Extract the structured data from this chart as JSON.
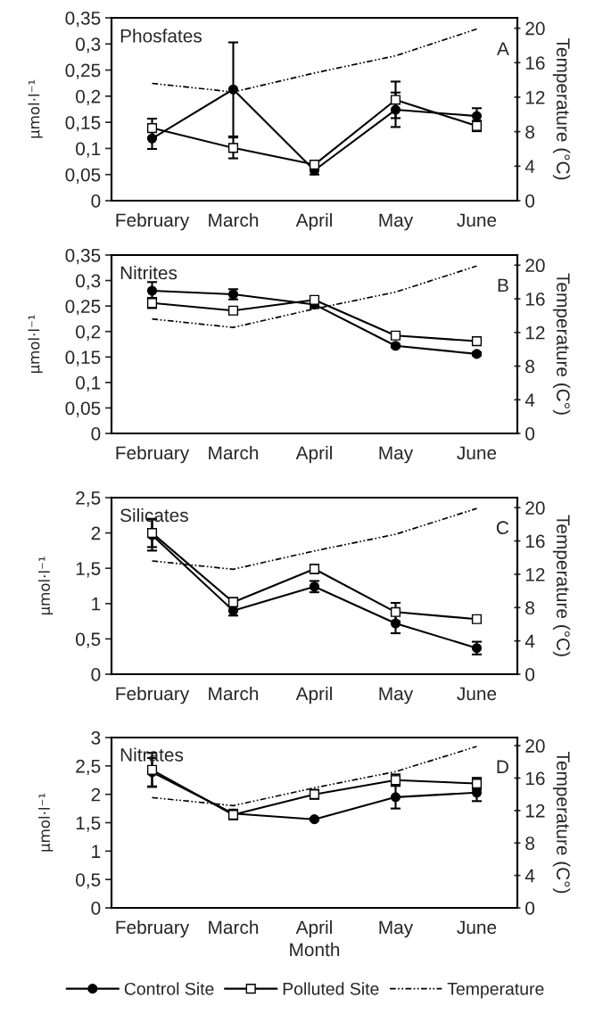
{
  "chart_data": [
    {
      "type": "line",
      "categories": [
        "February",
        "March",
        "April",
        "May",
        "June"
      ],
      "ylabel": "µmol·l⁻¹",
      "y2label": "Temperature (°C)",
      "annotations": [
        "Phosfates",
        "A"
      ],
      "ylim": [
        0,
        0.35
      ],
      "yticks": [
        0,
        {
          "value": 0.05,
          "label": "0,05"
        },
        {
          "value": 0.1,
          "label": "0,1"
        },
        {
          "value": 0.15,
          "label": "0,15"
        },
        {
          "value": 0.2,
          "label": "0,2"
        },
        {
          "value": 0.25,
          "label": "0,25"
        },
        {
          "value": 0.3,
          "label": "0,3"
        },
        {
          "value": 0.35,
          "label": "0,35"
        }
      ],
      "y2lim": [
        0,
        21.2
      ],
      "y2ticks": [
        0,
        4,
        8,
        12,
        16,
        20
      ],
      "grid": false,
      "series": [
        {
          "color": "#000000",
          "marker": "circle",
          "values": [
            0.119,
            0.213,
            0.058,
            0.174,
            0.162
          ],
          "errors": [
            0.02,
            0.09,
            0.008,
            0.033,
            0.015
          ]
        },
        {
          "color": "#000000",
          "marker": "square",
          "values": [
            0.139,
            0.101,
            0.069,
            0.193,
            0.143
          ],
          "errors": [
            0.018,
            0.02,
            0.007,
            0.035,
            0.01
          ]
        },
        {
          "color": "#000000",
          "marker": "none",
          "line_style": "dotted",
          "axis": "y2",
          "values": [
            13.6,
            12.6,
            14.8,
            16.8,
            19.9
          ]
        }
      ]
    },
    {
      "type": "line",
      "categories": [
        "February",
        "March",
        "April",
        "May",
        "June"
      ],
      "ylabel": "µmol·l⁻¹",
      "y2label": "Temperature (C°)",
      "annotations": [
        "Nitrites",
        "B"
      ],
      "ylim": [
        0,
        0.35
      ],
      "yticks": [
        0,
        {
          "value": 0.05,
          "label": "0,05"
        },
        {
          "value": 0.1,
          "label": "0,1"
        },
        {
          "value": 0.15,
          "label": "0,15"
        },
        {
          "value": 0.2,
          "label": "0,2"
        },
        {
          "value": 0.25,
          "label": "0,25"
        },
        {
          "value": 0.3,
          "label": "0,3"
        },
        {
          "value": 0.35,
          "label": "0,35"
        }
      ],
      "y2lim": [
        0,
        21.2
      ],
      "y2ticks": [
        0,
        4,
        8,
        12,
        16,
        20
      ],
      "grid": false,
      "series": [
        {
          "color": "#000000",
          "marker": "circle",
          "values": [
            0.28,
            0.273,
            0.253,
            0.172,
            0.156
          ],
          "errors": [
            0.017,
            0.01,
            0.007,
            0.003,
            0.003
          ]
        },
        {
          "color": "#000000",
          "marker": "square",
          "values": [
            0.256,
            0.241,
            0.262,
            0.192,
            0.181
          ],
          "errors": [
            0.01,
            0.007,
            0.005,
            0.004,
            0.003
          ]
        },
        {
          "color": "#000000",
          "marker": "none",
          "line_style": "dotted",
          "axis": "y2",
          "values": [
            13.6,
            12.6,
            14.8,
            16.8,
            19.9
          ]
        }
      ]
    },
    {
      "type": "line",
      "categories": [
        "February",
        "March",
        "April",
        "May",
        "June"
      ],
      "ylabel": "µmol·l⁻¹",
      "y2label": "Temperature (°C)",
      "annotations": [
        "Silicates",
        "C"
      ],
      "ylim": [
        0,
        2.5
      ],
      "yticks": [
        0,
        {
          "value": 0.5,
          "label": "0,5"
        },
        1,
        {
          "value": 1.5,
          "label": "1,5"
        },
        2,
        {
          "value": 2.5,
          "label": "2,5"
        }
      ],
      "y2lim": [
        0,
        21.2
      ],
      "y2ticks": [
        0,
        4,
        8,
        12,
        16,
        20
      ],
      "grid": false,
      "series": [
        {
          "color": "#000000",
          "marker": "circle",
          "values": [
            1.97,
            0.9,
            1.24,
            0.72,
            0.37
          ],
          "errors": [
            0.22,
            0.07,
            0.08,
            0.14,
            0.09
          ]
        },
        {
          "color": "#000000",
          "marker": "square",
          "values": [
            2.0,
            1.02,
            1.49,
            0.88,
            0.78
          ],
          "errors": [
            0.2,
            0.06,
            0.06,
            0.13,
            0.04
          ]
        },
        {
          "color": "#000000",
          "marker": "none",
          "line_style": "dotted",
          "axis": "y2",
          "values": [
            13.6,
            12.6,
            14.8,
            16.8,
            19.9
          ]
        }
      ]
    },
    {
      "type": "line",
      "categories": [
        "February",
        "March",
        "April",
        "May",
        "June"
      ],
      "xlabel": "Month",
      "ylabel": "µmol·l⁻¹",
      "y2label": "Temperature (C°)",
      "annotations": [
        "Nitrates",
        "D"
      ],
      "ylim": [
        0,
        3
      ],
      "yticks": [
        0,
        {
          "value": 0.5,
          "label": "0,5"
        },
        1,
        {
          "value": 1.5,
          "label": "1,5"
        },
        2,
        {
          "value": 2.5,
          "label": "2,5"
        },
        3
      ],
      "y2lim": [
        0,
        21
      ],
      "y2ticks": [
        0,
        4,
        8,
        12,
        16,
        20
      ],
      "grid": false,
      "legend": "bottom",
      "series": [
        {
          "name": "Control Site",
          "color": "#000000",
          "marker": "circle",
          "values": [
            2.39,
            1.66,
            1.56,
            1.95,
            2.03
          ],
          "errors": [
            0.25,
            0.07,
            0.02,
            0.2,
            0.15
          ]
        },
        {
          "name": "Polluted Site",
          "color": "#000000",
          "marker": "square",
          "values": [
            2.43,
            1.64,
            2.0,
            2.25,
            2.19
          ],
          "errors": [
            0.3,
            0.08,
            0.08,
            0.1,
            0.1
          ]
        },
        {
          "name": "Temperature",
          "color": "#000000",
          "marker": "none",
          "line_style": "dotted",
          "axis": "y2",
          "values": [
            13.6,
            12.6,
            14.8,
            16.8,
            19.9
          ]
        }
      ]
    }
  ]
}
